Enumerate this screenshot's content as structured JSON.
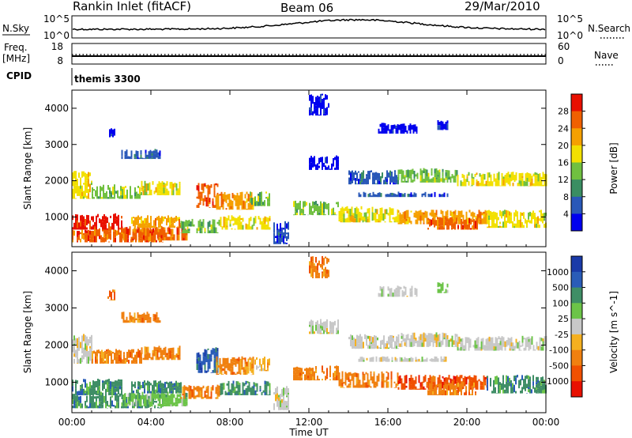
{
  "header": {
    "station": "Rankin Inlet (fitACF)",
    "beam": "Beam 06",
    "date": "29/Mar/2010"
  },
  "nsky": {
    "left_label": "N.Sky",
    "right_label": "N.Search",
    "left_ticks": [
      "10^5",
      "10^0"
    ],
    "right_ticks": [
      "10^5",
      "10^0"
    ]
  },
  "freq": {
    "left_label_1": "Freq.",
    "left_label_2": "[MHz]",
    "right_label": "Nave",
    "left_ticks": [
      "18",
      "8"
    ],
    "right_ticks": [
      "60",
      "0"
    ]
  },
  "cpid": {
    "label": "CPID",
    "program": "themis 3300"
  },
  "colors": {
    "power": [
      "#0000ee",
      "#2a58b8",
      "#3a8e62",
      "#70c040",
      "#f2e000",
      "#f5a000",
      "#f06000",
      "#e81000"
    ],
    "velocity": [
      "#1a3aa8",
      "#2a5cb8",
      "#3f8e66",
      "#6cc448",
      "#c8c8c8",
      "#f5b020",
      "#f08010",
      "#f05000",
      "#e81000"
    ]
  },
  "chart_data": [
    {
      "type": "heatmap",
      "title": "",
      "xlabel": "Time UT",
      "ylabel": "Slant Range [km]",
      "x_ticks": [
        "00:00",
        "04:00",
        "08:00",
        "12:00",
        "16:00",
        "20:00",
        "00:00"
      ],
      "y_ticks": [
        "1000",
        "2000",
        "3000",
        "4000"
      ],
      "xlim": [
        0,
        24
      ],
      "ylim": [
        180,
        4500
      ],
      "colorbar_label": "Power [dB]",
      "colorbar_ticks": [
        "4",
        "8",
        "12",
        "16",
        "20",
        "24",
        "28"
      ],
      "colorbar_range": [
        0,
        32
      ],
      "regions": [
        {
          "t": [
            0.0,
            4.6
          ],
          "r": [
            300,
            700
          ],
          "level": 6
        },
        {
          "t": [
            0.0,
            2.5
          ],
          "r": [
            650,
            1100
          ],
          "level": 7
        },
        {
          "t": [
            2.5,
            5.8
          ],
          "r": [
            350,
            750
          ],
          "level": 6
        },
        {
          "t": [
            3.0,
            5.5
          ],
          "r": [
            700,
            1050
          ],
          "level": 5
        },
        {
          "t": [
            5.5,
            7.5
          ],
          "r": [
            550,
            950
          ],
          "level": 3
        },
        {
          "t": [
            7.5,
            10.0
          ],
          "r": [
            650,
            1050
          ],
          "level": 4
        },
        {
          "t": [
            0.0,
            1.0
          ],
          "r": [
            1500,
            2300
          ],
          "level": 4
        },
        {
          "t": [
            1.0,
            3.5
          ],
          "r": [
            1500,
            1900
          ],
          "level": 3
        },
        {
          "t": [
            3.5,
            5.5
          ],
          "r": [
            1600,
            2000
          ],
          "level": 4
        },
        {
          "t": [
            6.3,
            7.4
          ],
          "r": [
            1250,
            1950
          ],
          "level": 6
        },
        {
          "t": [
            7.3,
            9.2
          ],
          "r": [
            1200,
            1700
          ],
          "level": 5
        },
        {
          "t": [
            9.0,
            10.0
          ],
          "r": [
            1300,
            1700
          ],
          "level": 3
        },
        {
          "t": [
            11.2,
            13.5
          ],
          "r": [
            1050,
            1450
          ],
          "level": 3
        },
        {
          "t": [
            13.5,
            16.5
          ],
          "r": [
            850,
            1300
          ],
          "level": 4
        },
        {
          "t": [
            16.5,
            21.0
          ],
          "r": [
            800,
            1200
          ],
          "level": 5
        },
        {
          "t": [
            18.0,
            20.5
          ],
          "r": [
            650,
            1000
          ],
          "level": 6
        },
        {
          "t": [
            21.0,
            24.0
          ],
          "r": [
            700,
            1200
          ],
          "level": 4
        },
        {
          "t": [
            14.0,
            16.5
          ],
          "r": [
            1900,
            2300
          ],
          "level": 1
        },
        {
          "t": [
            16.5,
            19.5
          ],
          "r": [
            1950,
            2350
          ],
          "level": 3
        },
        {
          "t": [
            19.5,
            24.0
          ],
          "r": [
            1850,
            2250
          ],
          "level": 4
        },
        {
          "t": [
            14.5,
            19.0
          ],
          "r": [
            1550,
            1700
          ],
          "level": 1
        },
        {
          "t": [
            12.0,
            13.5
          ],
          "r": [
            2300,
            2700
          ],
          "level": 0
        },
        {
          "t": [
            2.5,
            4.5
          ],
          "r": [
            2600,
            2900
          ],
          "level": 1
        },
        {
          "t": [
            1.8,
            2.2
          ],
          "r": [
            3200,
            3500
          ],
          "level": 0
        },
        {
          "t": [
            15.5,
            17.5
          ],
          "r": [
            3300,
            3600
          ],
          "level": 0
        },
        {
          "t": [
            18.5,
            19.0
          ],
          "r": [
            3400,
            3700
          ],
          "level": 0
        },
        {
          "t": [
            12.0,
            13.0
          ],
          "r": [
            3800,
            4400
          ],
          "level": 0
        },
        {
          "t": [
            10.2,
            11.0
          ],
          "r": [
            250,
            900
          ],
          "level": 1
        }
      ]
    },
    {
      "type": "heatmap",
      "title": "",
      "xlabel": "Time UT",
      "ylabel": "Slant Range [km]",
      "x_ticks": [
        "00:00",
        "04:00",
        "08:00",
        "12:00",
        "16:00",
        "20:00",
        "00:00"
      ],
      "y_ticks": [
        "1000",
        "2000",
        "3000",
        "4000"
      ],
      "xlim": [
        0,
        24
      ],
      "ylim": [
        180,
        4500
      ],
      "colorbar_label": "Velocity [m s^-1]",
      "colorbar_ticks": [
        "1000",
        "500",
        "100",
        "25",
        "-25",
        "-100",
        "-500",
        "-1000"
      ],
      "colorbar_range": [
        -1000,
        1000
      ],
      "regions": [
        {
          "t": [
            0.0,
            4.6
          ],
          "r": [
            300,
            700
          ],
          "level": 2
        },
        {
          "t": [
            0.0,
            2.5
          ],
          "r": [
            650,
            1100
          ],
          "level": 2
        },
        {
          "t": [
            2.5,
            5.8
          ],
          "r": [
            350,
            750
          ],
          "level": 3
        },
        {
          "t": [
            3.0,
            5.5
          ],
          "r": [
            700,
            1050
          ],
          "level": 2
        },
        {
          "t": [
            5.5,
            7.5
          ],
          "r": [
            550,
            950
          ],
          "level": 6
        },
        {
          "t": [
            7.5,
            10.0
          ],
          "r": [
            650,
            1050
          ],
          "level": 2
        },
        {
          "t": [
            0.0,
            1.0
          ],
          "r": [
            1500,
            2300
          ],
          "level": 4
        },
        {
          "t": [
            1.0,
            3.5
          ],
          "r": [
            1500,
            1900
          ],
          "level": 6
        },
        {
          "t": [
            3.5,
            5.5
          ],
          "r": [
            1600,
            2000
          ],
          "level": 6
        },
        {
          "t": [
            6.3,
            7.4
          ],
          "r": [
            1250,
            1950
          ],
          "level": 1
        },
        {
          "t": [
            7.3,
            9.2
          ],
          "r": [
            1200,
            1700
          ],
          "level": 6
        },
        {
          "t": [
            9.0,
            10.0
          ],
          "r": [
            1300,
            1700
          ],
          "level": 5
        },
        {
          "t": [
            11.2,
            13.5
          ],
          "r": [
            1050,
            1450
          ],
          "level": 6
        },
        {
          "t": [
            13.5,
            16.5
          ],
          "r": [
            850,
            1300
          ],
          "level": 6
        },
        {
          "t": [
            16.5,
            21.0
          ],
          "r": [
            800,
            1200
          ],
          "level": 7
        },
        {
          "t": [
            18.0,
            20.5
          ],
          "r": [
            650,
            1000
          ],
          "level": 6
        },
        {
          "t": [
            21.0,
            24.0
          ],
          "r": [
            700,
            1200
          ],
          "level": 2
        },
        {
          "t": [
            14.0,
            16.5
          ],
          "r": [
            1900,
            2300
          ],
          "level": 4
        },
        {
          "t": [
            16.5,
            19.5
          ],
          "r": [
            1950,
            2350
          ],
          "level": 4
        },
        {
          "t": [
            19.5,
            24.0
          ],
          "r": [
            1850,
            2250
          ],
          "level": 4
        },
        {
          "t": [
            14.5,
            19.0
          ],
          "r": [
            1550,
            1700
          ],
          "level": 4
        },
        {
          "t": [
            12.0,
            13.5
          ],
          "r": [
            2300,
            2700
          ],
          "level": 4
        },
        {
          "t": [
            2.5,
            4.5
          ],
          "r": [
            2600,
            2900
          ],
          "level": 6
        },
        {
          "t": [
            1.8,
            2.2
          ],
          "r": [
            3200,
            3500
          ],
          "level": 6
        },
        {
          "t": [
            15.5,
            17.5
          ],
          "r": [
            3300,
            3600
          ],
          "level": 4
        },
        {
          "t": [
            18.5,
            19.0
          ],
          "r": [
            3400,
            3700
          ],
          "level": 3
        },
        {
          "t": [
            12.0,
            13.0
          ],
          "r": [
            3800,
            4400
          ],
          "level": 6
        },
        {
          "t": [
            10.2,
            11.0
          ],
          "r": [
            250,
            900
          ],
          "level": 4
        }
      ]
    }
  ]
}
